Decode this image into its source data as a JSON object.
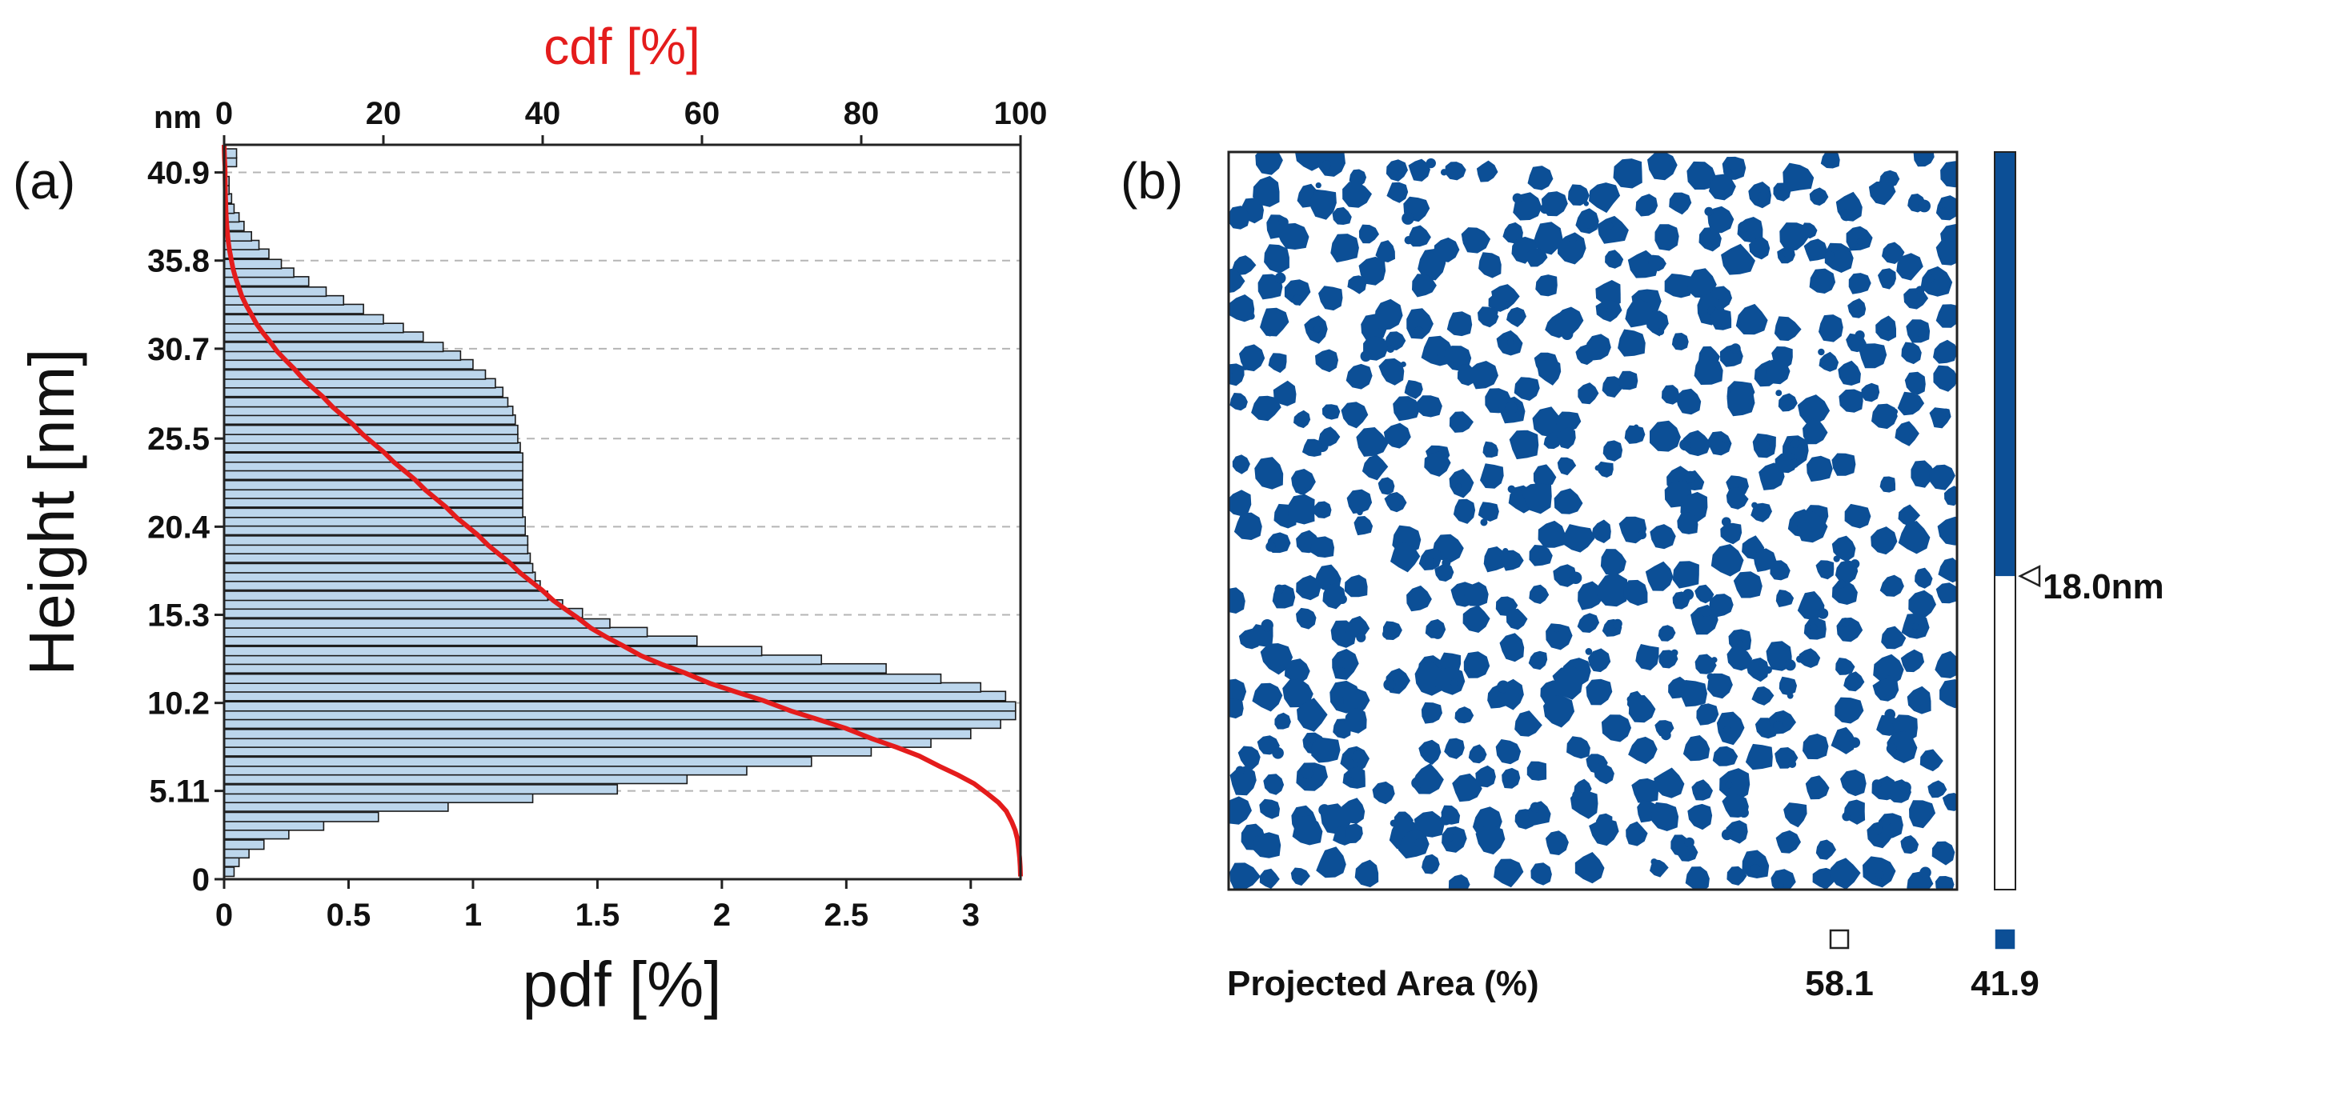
{
  "figure": {
    "panel_a_label": "(a)",
    "panel_b_label": "(b)"
  },
  "chart_data": [
    {
      "type": "bar",
      "orientation": "horizontal",
      "xlabel": "pdf [%]",
      "ylabel": "Height [nm]",
      "xlim": [
        0,
        3.2
      ],
      "ylim": [
        0,
        42.5
      ],
      "x_ticks": [
        "0",
        "0.5",
        "1",
        "1.5",
        "2",
        "2.5",
        "3"
      ],
      "y_unit": "nm",
      "y_ticks": [
        "0",
        "5.11",
        "10.2",
        "15.3",
        "20.4",
        "25.5",
        "30.7",
        "35.8",
        "40.9"
      ],
      "grid": "horizontal dashed",
      "bar_fill": "#bcd6ec",
      "bar_stroke": "#1a1a1a",
      "heights": [
        0.43,
        1.0,
        1.5,
        2.0,
        2.6,
        3.1,
        3.6,
        4.2,
        4.7,
        5.2,
        5.8,
        6.3,
        6.8,
        7.4,
        7.9,
        8.4,
        9.0,
        9.5,
        10.0,
        10.6,
        11.1,
        11.6,
        12.2,
        12.7,
        13.2,
        13.8,
        14.3,
        14.8,
        15.4,
        15.9,
        16.4,
        17.0,
        17.5,
        18.0,
        18.6,
        19.1,
        19.6,
        20.2,
        20.7,
        21.2,
        21.8,
        22.3,
        22.8,
        23.4,
        23.9,
        24.4,
        25.0,
        25.5,
        26.0,
        26.6,
        27.1,
        27.6,
        28.2,
        28.7,
        29.2,
        29.8,
        30.3,
        30.8,
        31.4,
        31.9,
        32.4,
        33.0,
        33.5,
        34.0,
        34.6,
        35.1,
        35.6,
        36.2,
        36.7,
        37.2,
        37.8,
        38.3,
        38.8,
        39.4,
        39.9,
        40.4,
        41.0,
        41.5,
        42.0
      ],
      "pdf_values": [
        0.04,
        0.06,
        0.1,
        0.16,
        0.26,
        0.4,
        0.62,
        0.9,
        1.24,
        1.58,
        1.86,
        2.1,
        2.36,
        2.6,
        2.84,
        3.0,
        3.12,
        3.18,
        3.18,
        3.14,
        3.04,
        2.88,
        2.66,
        2.4,
        2.16,
        1.9,
        1.7,
        1.55,
        1.44,
        1.36,
        1.3,
        1.27,
        1.25,
        1.24,
        1.23,
        1.22,
        1.22,
        1.21,
        1.21,
        1.2,
        1.2,
        1.2,
        1.2,
        1.2,
        1.2,
        1.2,
        1.19,
        1.18,
        1.18,
        1.17,
        1.16,
        1.14,
        1.12,
        1.09,
        1.05,
        1.0,
        0.95,
        0.88,
        0.8,
        0.72,
        0.64,
        0.56,
        0.48,
        0.41,
        0.34,
        0.28,
        0.23,
        0.18,
        0.14,
        0.11,
        0.08,
        0.06,
        0.04,
        0.03,
        0.02,
        0.02,
        0.01,
        0.05,
        0.05
      ],
      "cdf": {
        "label": "cdf [%]",
        "xlim": [
          0,
          100
        ],
        "ticks": [
          "0",
          "20",
          "40",
          "60",
          "80",
          "100"
        ],
        "color": "#e41c1c"
      }
    },
    {
      "type": "map",
      "description_free": true,
      "threshold_label": "18.0nm",
      "threshold_value": 18.0,
      "scale_fill_fraction": 0.575,
      "particle_color": "#0c4f96",
      "background_color": "#ffffff",
      "legend": {
        "title": "Projected Area (%)",
        "white_value": "58.1",
        "blue_value": "41.9"
      }
    }
  ]
}
